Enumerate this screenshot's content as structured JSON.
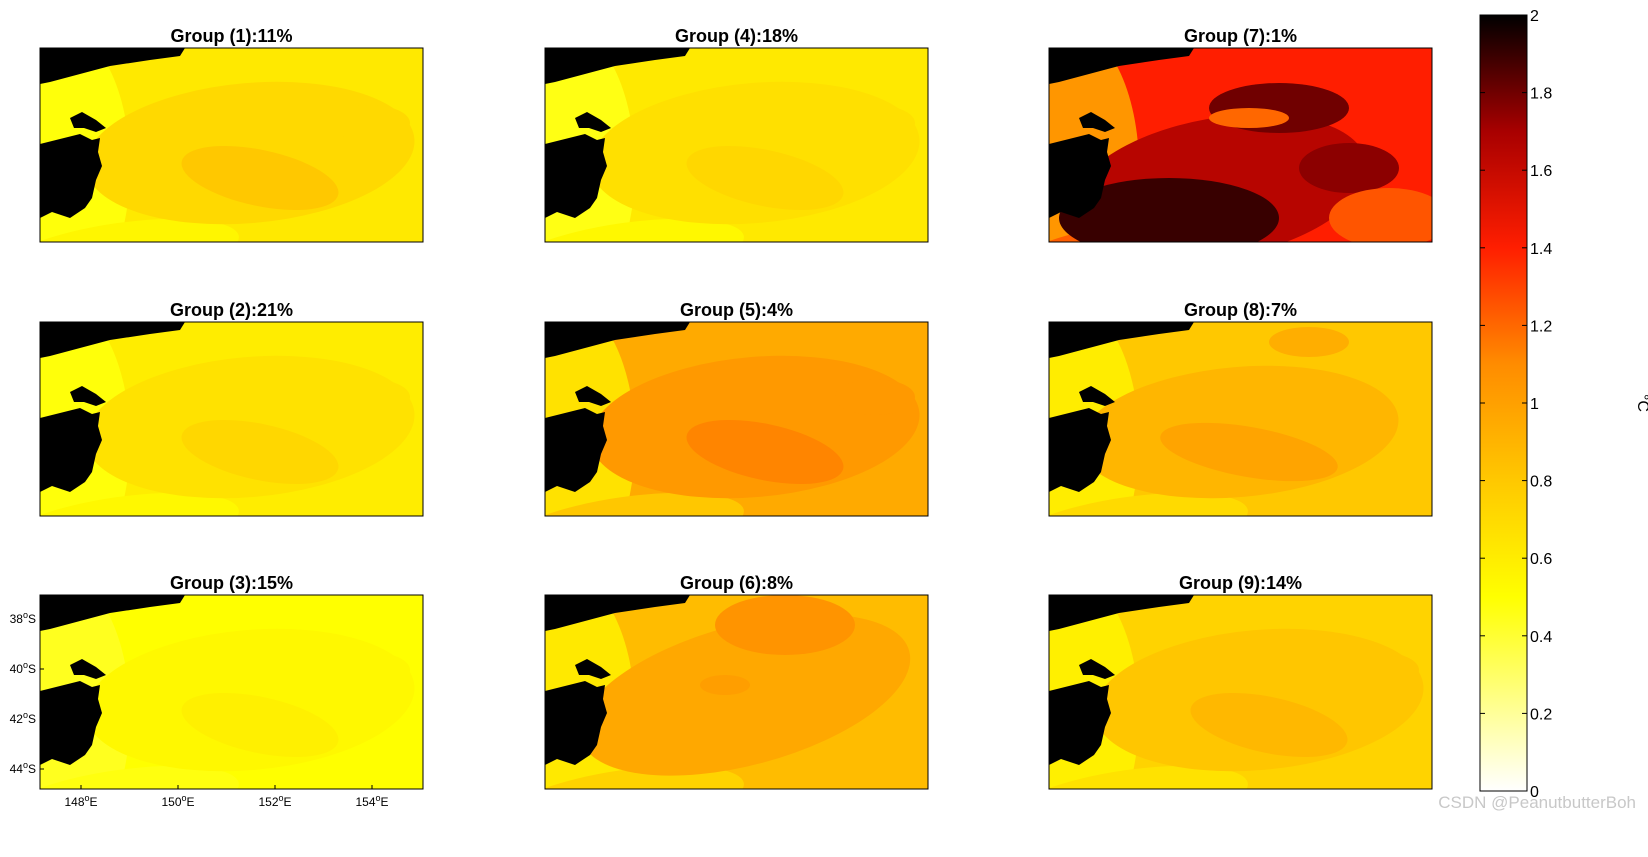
{
  "figure": {
    "watermark": "CSDN @PeanutbutterBoh"
  },
  "chart_data": {
    "type": "heatmap",
    "kind": "filled-contour map panels",
    "panels": [
      {
        "group": "Group (1):11%",
        "pattern": "core",
        "base": 0.62,
        "peak": 0.8,
        "coast": 0.48
      },
      {
        "group": "Group (2):21%",
        "pattern": "core",
        "base": 0.6,
        "peak": 0.72,
        "coast": 0.48
      },
      {
        "group": "Group (3):15%",
        "pattern": "core",
        "base": 0.5,
        "peak": 0.58,
        "coast": 0.44
      },
      {
        "group": "Group (4):18%",
        "pattern": "core",
        "base": 0.62,
        "peak": 0.72,
        "coast": 0.46
      },
      {
        "group": "Group (5):4%",
        "pattern": "core",
        "base": 0.95,
        "peak": 1.12,
        "coast": 0.66
      },
      {
        "group": "Group (6):8%",
        "pattern": "north",
        "base": 0.86,
        "peak": 1.06,
        "coast": 0.62
      },
      {
        "group": "Group (7):1%",
        "pattern": "hot",
        "base": 1.4,
        "peak": 1.9,
        "coast": 1.05
      },
      {
        "group": "Group (8):7%",
        "pattern": "band",
        "base": 0.8,
        "peak": 0.98,
        "coast": 0.6
      },
      {
        "group": "Group (9):14%",
        "pattern": "core",
        "base": 0.74,
        "peak": 0.88,
        "coast": 0.58
      }
    ],
    "xticks": [
      "148",
      "150",
      "152",
      "154"
    ],
    "xtick_suffix": "E",
    "yticks": [
      "38",
      "40",
      "42",
      "44"
    ],
    "ytick_suffix": "S",
    "degree_symbol": "o",
    "colorbar": {
      "min": 0,
      "max": 2,
      "ticks": [
        "0",
        "0.2",
        "0.4",
        "0.6",
        "0.8",
        "1",
        "1.2",
        "1.4",
        "1.6",
        "1.8",
        "2"
      ],
      "colormap": "hot (reversed)",
      "label": "°C"
    }
  }
}
